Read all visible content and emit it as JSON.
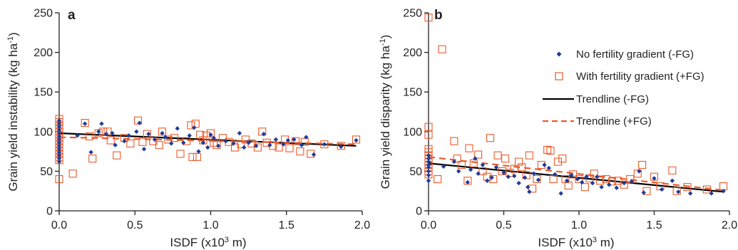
{
  "chart_data": [
    {
      "type": "scatter",
      "panel_label": "a",
      "xlabel": "ISDF (x10",
      "xlabel_sup": "3",
      "xlabel_tail": " m)",
      "ylabel": "Grain yield instability (kg ha",
      "ylabel_sup": "-1",
      "ylabel_tail": ")",
      "xlim": [
        0,
        2.0
      ],
      "ylim": [
        0,
        250
      ],
      "x_ticks": [
        "0.0",
        "0.5",
        "1.0",
        "1.5",
        "2.0"
      ],
      "y_ticks": [
        "0",
        "50",
        "100",
        "150",
        "200",
        "250"
      ],
      "grid": false,
      "series": [
        {
          "key": "nofg",
          "marker": "diamond",
          "color": "#1f3d99",
          "points": [
            [
              0,
              62
            ],
            [
              0,
              66
            ],
            [
              0,
              70
            ],
            [
              0,
              74
            ],
            [
              0,
              78
            ],
            [
              0,
              82
            ],
            [
              0,
              86
            ],
            [
              0,
              90
            ],
            [
              0,
              94
            ],
            [
              0,
              98
            ],
            [
              0,
              102
            ],
            [
              0,
              106
            ],
            [
              0,
              110
            ],
            [
              0,
              114
            ],
            [
              0.12,
              95
            ],
            [
              0.17,
              110
            ],
            [
              0.21,
              74
            ],
            [
              0.26,
              100
            ],
            [
              0.28,
              110
            ],
            [
              0.31,
              97
            ],
            [
              0.35,
              98
            ],
            [
              0.37,
              83
            ],
            [
              0.43,
              88
            ],
            [
              0.46,
              95
            ],
            [
              0.51,
              100
            ],
            [
              0.53,
              111
            ],
            [
              0.56,
              78
            ],
            [
              0.59,
              97
            ],
            [
              0.63,
              90
            ],
            [
              0.68,
              98
            ],
            [
              0.7,
              93
            ],
            [
              0.74,
              85
            ],
            [
              0.78,
              104
            ],
            [
              0.82,
              86
            ],
            [
              0.86,
              95
            ],
            [
              0.89,
              105
            ],
            [
              0.92,
              75
            ],
            [
              0.95,
              86
            ],
            [
              0.98,
              80
            ],
            [
              1.0,
              96
            ],
            [
              1.02,
              92
            ],
            [
              1.05,
              82
            ],
            [
              1.1,
              88
            ],
            [
              1.15,
              85
            ],
            [
              1.19,
              98
            ],
            [
              1.22,
              80
            ],
            [
              1.25,
              86
            ],
            [
              1.3,
              82
            ],
            [
              1.35,
              97
            ],
            [
              1.39,
              83
            ],
            [
              1.43,
              90
            ],
            [
              1.48,
              84
            ],
            [
              1.51,
              89
            ],
            [
              1.55,
              90
            ],
            [
              1.6,
              83
            ],
            [
              1.63,
              93
            ],
            [
              1.68,
              71
            ],
            [
              1.75,
              84
            ],
            [
              1.86,
              81
            ],
            [
              1.96,
              89
            ]
          ]
        },
        {
          "key": "withfg",
          "marker": "square",
          "color": "#ea5b2a",
          "points": [
            [
              0,
              40
            ],
            [
              0,
              64
            ],
            [
              0,
              68
            ],
            [
              0,
              72
            ],
            [
              0,
              76
            ],
            [
              0,
              80
            ],
            [
              0,
              84
            ],
            [
              0,
              88
            ],
            [
              0,
              92
            ],
            [
              0,
              96
            ],
            [
              0,
              100
            ],
            [
              0,
              104
            ],
            [
              0,
              108
            ],
            [
              0,
              112
            ],
            [
              0,
              116
            ],
            [
              0.09,
              47
            ],
            [
              0.17,
              111
            ],
            [
              0.2,
              94
            ],
            [
              0.22,
              66
            ],
            [
              0.26,
              98
            ],
            [
              0.29,
              100
            ],
            [
              0.32,
              100
            ],
            [
              0.34,
              89
            ],
            [
              0.38,
              70
            ],
            [
              0.43,
              92
            ],
            [
              0.47,
              85
            ],
            [
              0.52,
              114
            ],
            [
              0.55,
              87
            ],
            [
              0.58,
              97
            ],
            [
              0.62,
              88
            ],
            [
              0.66,
              83
            ],
            [
              0.68,
              100
            ],
            [
              0.72,
              90
            ],
            [
              0.76,
              92
            ],
            [
              0.8,
              72
            ],
            [
              0.84,
              88
            ],
            [
              0.87,
              108
            ],
            [
              0.88,
              68
            ],
            [
              0.9,
              110
            ],
            [
              0.91,
              68
            ],
            [
              0.93,
              96
            ],
            [
              0.95,
              89
            ],
            [
              0.97,
              95
            ],
            [
              1.0,
              98
            ],
            [
              1.02,
              86
            ],
            [
              1.04,
              83
            ],
            [
              1.08,
              92
            ],
            [
              1.12,
              87
            ],
            [
              1.16,
              80
            ],
            [
              1.2,
              84
            ],
            [
              1.23,
              90
            ],
            [
              1.27,
              85
            ],
            [
              1.31,
              80
            ],
            [
              1.34,
              100
            ],
            [
              1.37,
              86
            ],
            [
              1.41,
              82
            ],
            [
              1.45,
              80
            ],
            [
              1.49,
              90
            ],
            [
              1.52,
              79
            ],
            [
              1.56,
              88
            ],
            [
              1.59,
              75
            ],
            [
              1.62,
              87
            ],
            [
              1.66,
              72
            ],
            [
              1.75,
              84
            ],
            [
              1.86,
              82
            ],
            [
              1.96,
              90
            ]
          ]
        }
      ],
      "trendlines": [
        {
          "key": "nofg",
          "x": [
            0,
            1.96
          ],
          "y": [
            98,
            82
          ]
        },
        {
          "key": "withfg",
          "x": [
            0,
            1.96
          ],
          "y": [
            93,
            84
          ]
        }
      ]
    },
    {
      "type": "scatter",
      "panel_label": "b",
      "xlabel": "ISDF (x10",
      "xlabel_sup": "3",
      "xlabel_tail": " m)",
      "ylabel": "Grain yield disparity (kg ha",
      "ylabel_sup": "-1",
      "ylabel_tail": ")",
      "xlim": [
        0,
        2.0
      ],
      "ylim": [
        0,
        250
      ],
      "x_ticks": [
        "0.0",
        "0.5",
        "1.0",
        "1.5",
        "2.0"
      ],
      "y_ticks": [
        "0",
        "50",
        "100",
        "150",
        "200",
        "250"
      ],
      "grid": false,
      "legend_position": "top-right",
      "legend": [
        {
          "key": "nofg",
          "label": "No fertility gradient (-FG)",
          "symbol": "diamond"
        },
        {
          "key": "withfg",
          "label": "With fertility gradient (+FG)",
          "symbol": "square"
        },
        {
          "key": "nofg",
          "label": "Trendline (-FG)",
          "symbol": "solid-line"
        },
        {
          "key": "withfg",
          "label": "Trendline (+FG)",
          "symbol": "dashed-line"
        }
      ],
      "series": [
        {
          "key": "nofg",
          "marker": "diamond",
          "color": "#1f3d99",
          "points": [
            [
              0,
              38
            ],
            [
              0,
              45
            ],
            [
              0,
              50
            ],
            [
              0,
              55
            ],
            [
              0,
              58
            ],
            [
              0,
              62
            ],
            [
              0,
              66
            ],
            [
              0,
              70
            ],
            [
              0.1,
              56
            ],
            [
              0.17,
              62
            ],
            [
              0.2,
              50
            ],
            [
              0.26,
              36
            ],
            [
              0.28,
              52
            ],
            [
              0.31,
              66
            ],
            [
              0.33,
              47
            ],
            [
              0.36,
              58
            ],
            [
              0.39,
              38
            ],
            [
              0.42,
              42
            ],
            [
              0.45,
              55
            ],
            [
              0.5,
              48
            ],
            [
              0.53,
              43
            ],
            [
              0.57,
              44
            ],
            [
              0.6,
              35
            ],
            [
              0.64,
              42
            ],
            [
              0.66,
              30
            ],
            [
              0.67,
              24
            ],
            [
              0.7,
              47
            ],
            [
              0.73,
              39
            ],
            [
              0.77,
              58
            ],
            [
              0.8,
              54
            ],
            [
              0.84,
              46
            ],
            [
              0.88,
              22
            ],
            [
              0.92,
              38
            ],
            [
              0.95,
              45
            ],
            [
              0.99,
              40
            ],
            [
              1.02,
              36
            ],
            [
              1.05,
              43
            ],
            [
              1.09,
              35
            ],
            [
              1.12,
              43
            ],
            [
              1.15,
              30
            ],
            [
              1.2,
              33
            ],
            [
              1.25,
              29
            ],
            [
              1.3,
              35
            ],
            [
              1.35,
              37
            ],
            [
              1.4,
              50
            ],
            [
              1.43,
              23
            ],
            [
              1.5,
              41
            ],
            [
              1.55,
              27
            ],
            [
              1.62,
              38
            ],
            [
              1.66,
              24
            ],
            [
              1.74,
              22
            ],
            [
              1.88,
              22
            ],
            [
              1.96,
              25
            ]
          ]
        },
        {
          "key": "withfg",
          "marker": "square",
          "color": "#ea5b2a",
          "points": [
            [
              0,
              244
            ],
            [
              0.09,
              204
            ],
            [
              0,
              106
            ],
            [
              0,
              96
            ],
            [
              0,
              78
            ],
            [
              0,
              74
            ],
            [
              0,
              70
            ],
            [
              0,
              66
            ],
            [
              0,
              62
            ],
            [
              0,
              58
            ],
            [
              0,
              54
            ],
            [
              0,
              50
            ],
            [
              0,
              46
            ],
            [
              0.06,
              40
            ],
            [
              0.17,
              88
            ],
            [
              0.19,
              66
            ],
            [
              0.22,
              58
            ],
            [
              0.26,
              38
            ],
            [
              0.27,
              79
            ],
            [
              0.3,
              60
            ],
            [
              0.33,
              71
            ],
            [
              0.36,
              50
            ],
            [
              0.39,
              43
            ],
            [
              0.41,
              92
            ],
            [
              0.43,
              40
            ],
            [
              0.46,
              70
            ],
            [
              0.49,
              50
            ],
            [
              0.51,
              66
            ],
            [
              0.54,
              48
            ],
            [
              0.57,
              53
            ],
            [
              0.6,
              62
            ],
            [
              0.62,
              55
            ],
            [
              0.65,
              45
            ],
            [
              0.67,
              70
            ],
            [
              0.69,
              28
            ],
            [
              0.72,
              40
            ],
            [
              0.75,
              58
            ],
            [
              0.79,
              77
            ],
            [
              0.81,
              76
            ],
            [
              0.83,
              40
            ],
            [
              0.86,
              62
            ],
            [
              0.89,
              66
            ],
            [
              0.91,
              40
            ],
            [
              0.93,
              32
            ],
            [
              0.96,
              46
            ],
            [
              1.0,
              40
            ],
            [
              1.04,
              30
            ],
            [
              1.07,
              41
            ],
            [
              1.1,
              47
            ],
            [
              1.14,
              38
            ],
            [
              1.18,
              40
            ],
            [
              1.22,
              37
            ],
            [
              1.26,
              38
            ],
            [
              1.3,
              33
            ],
            [
              1.34,
              40
            ],
            [
              1.39,
              47
            ],
            [
              1.42,
              58
            ],
            [
              1.45,
              25
            ],
            [
              1.5,
              43
            ],
            [
              1.54,
              31
            ],
            [
              1.62,
              51
            ],
            [
              1.65,
              25
            ],
            [
              1.72,
              30
            ],
            [
              1.85,
              27
            ],
            [
              1.96,
              31
            ]
          ]
        }
      ],
      "trendlines": [
        {
          "key": "nofg",
          "x": [
            0,
            1.96
          ],
          "y": [
            60,
            24
          ]
        },
        {
          "key": "withfg",
          "x": [
            0,
            1.96
          ],
          "y": [
            68,
            26
          ]
        }
      ]
    }
  ]
}
